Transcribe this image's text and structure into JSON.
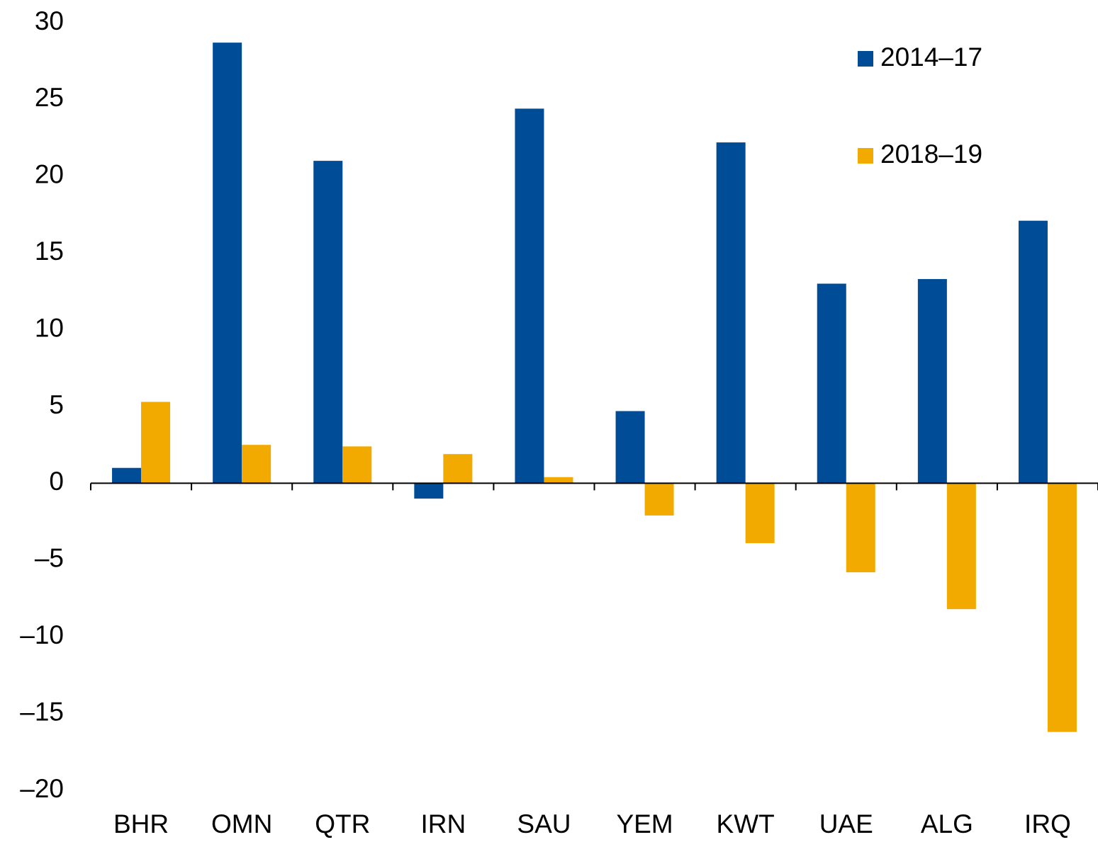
{
  "chart_data": {
    "type": "bar",
    "categories": [
      "BHR",
      "OMN",
      "QTR",
      "IRN",
      "SAU",
      "YEM",
      "KWT",
      "UAE",
      "ALG",
      "IRQ"
    ],
    "series": [
      {
        "name": "2014–17",
        "color": "#004c97",
        "values": [
          1.0,
          28.7,
          21.0,
          -1.0,
          24.4,
          4.7,
          22.2,
          13.0,
          13.3,
          17.1
        ]
      },
      {
        "name": "2018–19",
        "color": "#f2a900",
        "values": [
          5.3,
          2.5,
          2.4,
          1.9,
          0.4,
          -2.1,
          -3.9,
          -5.8,
          -8.2,
          -16.2
        ]
      }
    ],
    "ylim": [
      -20,
      30
    ],
    "yticks": [
      {
        "value": -20,
        "label": "–20"
      },
      {
        "value": -15,
        "label": "–15"
      },
      {
        "value": -10,
        "label": "–10"
      },
      {
        "value": -5,
        "label": "–5"
      },
      0,
      5,
      10,
      15,
      20,
      25,
      30
    ],
    "grid": false,
    "legend": "top-right"
  }
}
